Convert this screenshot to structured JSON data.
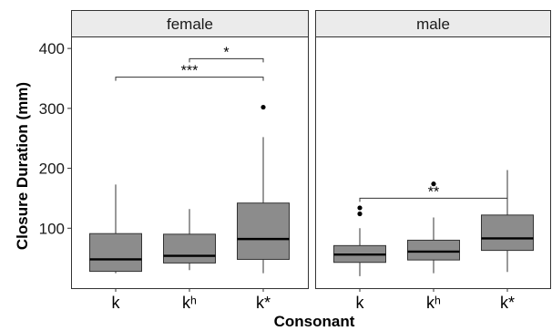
{
  "chart_data": {
    "type": "boxplot",
    "xlabel": "Consonant",
    "ylabel": "Closure Duration (mm)",
    "ylim": [
      0,
      420
    ],
    "yticks": [
      100,
      200,
      300,
      400
    ],
    "grid": false,
    "categories": [
      "k",
      "kʰ",
      "k*"
    ],
    "colors": {
      "box": "#8c8c8c",
      "median": "#000000",
      "strip": "#ebebeb"
    },
    "panels": [
      {
        "name": "female",
        "boxes": [
          {
            "category": "k",
            "min": 25,
            "q1": 28,
            "median": 48,
            "q3": 91,
            "max": 173,
            "outliers": []
          },
          {
            "category": "kʰ",
            "min": 30,
            "q1": 42,
            "median": 54,
            "q3": 90,
            "max": 132,
            "outliers": []
          },
          {
            "category": "k*",
            "min": 25,
            "q1": 48,
            "median": 82,
            "q3": 142,
            "max": 252,
            "outliers": [
              302
            ]
          }
        ],
        "significance": [
          {
            "from": 1,
            "to": 2,
            "label": "*",
            "y": 383
          },
          {
            "from": 0,
            "to": 2,
            "label": "***",
            "y": 352
          }
        ]
      },
      {
        "name": "male",
        "boxes": [
          {
            "category": "k",
            "min": 20,
            "q1": 43,
            "median": 56,
            "q3": 71,
            "max": 100,
            "outliers": [
              124,
              134
            ]
          },
          {
            "category": "kʰ",
            "min": 25,
            "q1": 47,
            "median": 61,
            "q3": 80,
            "max": 118,
            "outliers": [
              174
            ]
          },
          {
            "category": "k*",
            "min": 27,
            "q1": 63,
            "median": 83,
            "q3": 122,
            "max": 197,
            "outliers": []
          }
        ],
        "significance": [
          {
            "from": 0,
            "to": 2,
            "label": "**",
            "y": 150
          }
        ]
      }
    ]
  }
}
